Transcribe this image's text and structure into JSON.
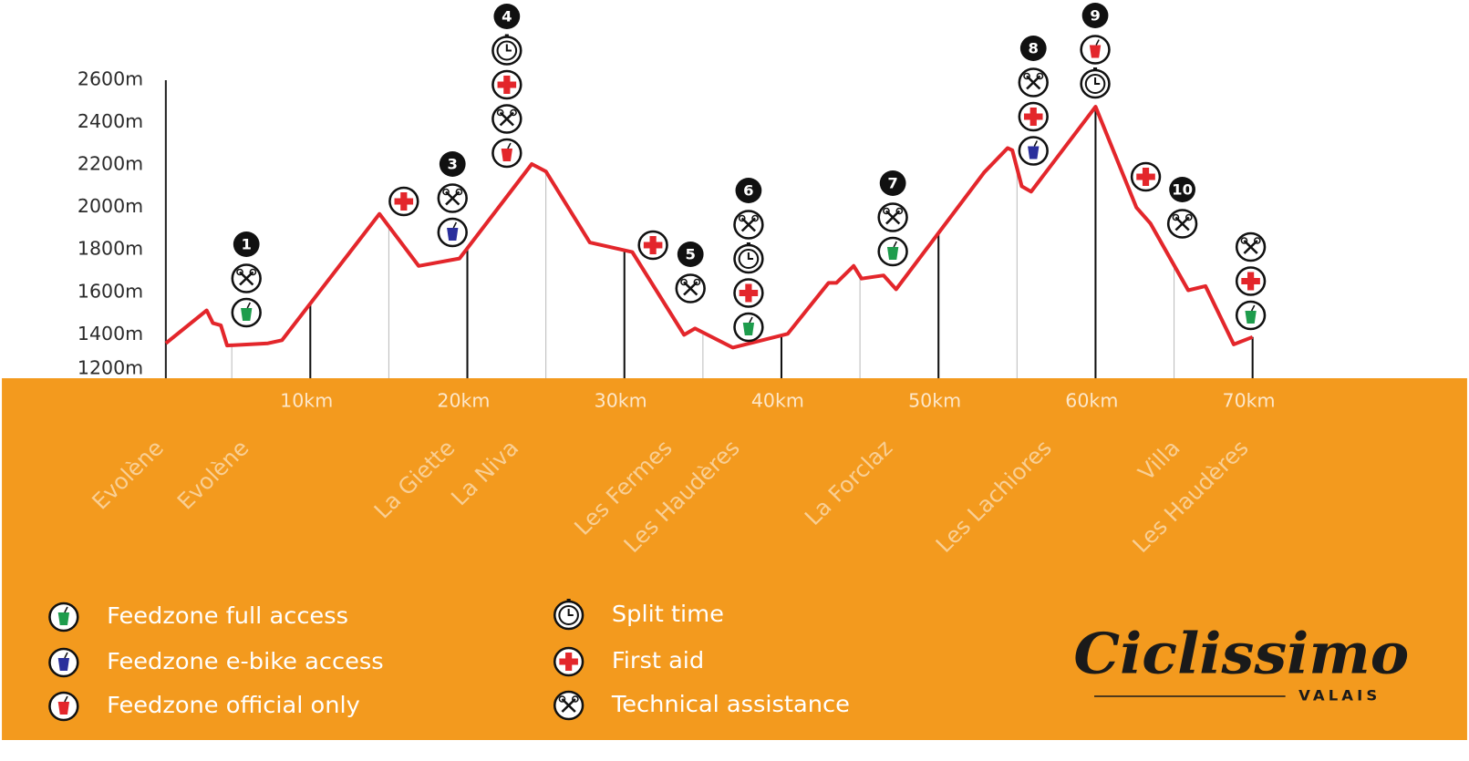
{
  "chart_data": {
    "type": "line",
    "color": "#e3262b",
    "x": [
      0.8,
      3.4,
      3.8,
      4.3,
      4.7,
      7.3,
      8.2,
      14.4,
      16.9,
      19.5,
      24.1,
      25.0,
      27.8,
      30.5,
      33.8,
      34.5,
      36.9,
      40.4,
      43.0,
      43.5,
      44.6,
      45.1,
      46.5,
      47.3,
      52.9,
      54.4,
      54.7,
      55.3,
      55.9,
      60.0,
      62.6,
      63.5,
      65.9,
      67.0,
      68.8,
      70.0
    ],
    "values": [
      1360,
      1515,
      1455,
      1445,
      1350,
      1360,
      1375,
      1970,
      1725,
      1760,
      2205,
      2170,
      1835,
      1790,
      1400,
      1430,
      1340,
      1405,
      1645,
      1645,
      1725,
      1665,
      1680,
      1615,
      2165,
      2280,
      2270,
      2100,
      2075,
      2475,
      2000,
      1925,
      1610,
      1630,
      1355,
      1390
    ],
    "xlim": [
      0.8,
      70
    ],
    "ylim": [
      1200,
      2600
    ],
    "xticks": [
      {
        "value": 10,
        "label": "10km"
      },
      {
        "value": 20,
        "label": "20km"
      },
      {
        "value": 30,
        "label": "30km"
      },
      {
        "value": 40,
        "label": "40km"
      },
      {
        "value": 50,
        "label": "50km"
      },
      {
        "value": 60,
        "label": "60km"
      },
      {
        "value": 70,
        "label": "70km"
      }
    ],
    "minor_xticks": [
      5,
      15,
      25,
      35,
      45,
      55,
      65
    ],
    "yticks": [
      {
        "value": 1200,
        "label": "1200m"
      },
      {
        "value": 1400,
        "label": "1400m"
      },
      {
        "value": 1600,
        "label": "1600m"
      },
      {
        "value": 1800,
        "label": "1800m"
      },
      {
        "value": 2000,
        "label": "2000m"
      },
      {
        "value": 2200,
        "label": "2200m"
      },
      {
        "value": 2400,
        "label": "2400m"
      },
      {
        "value": 2600,
        "label": "2600m"
      }
    ],
    "places": [
      "Evolène",
      "Evolène",
      "La Giette",
      "La Niva",
      "Les Fermes",
      "Les Haudères",
      "La Forclaz",
      "Les Lachiores",
      "Villa",
      "Les Haudères"
    ],
    "stations": [
      {
        "number": 1,
        "icons": [
          5,
          0
        ]
      },
      {
        "icons": [
          4
        ]
      },
      {
        "number": 3,
        "icons": [
          5,
          1
        ]
      },
      {
        "number": 4,
        "icons": [
          3,
          4,
          5,
          2
        ]
      },
      {
        "icons": [
          4
        ]
      },
      {
        "number": 5,
        "icons": [
          5
        ]
      },
      {
        "number": 6,
        "icons": [
          5,
          3,
          4,
          0
        ]
      },
      {
        "number": 7,
        "icons": [
          5,
          0
        ]
      },
      {
        "number": 8,
        "icons": [
          5,
          4,
          1
        ]
      },
      {
        "number": 9,
        "icons": [
          2,
          3
        ]
      },
      {
        "icons": [
          4
        ]
      },
      {
        "number": 10,
        "icons": [
          5
        ]
      },
      {
        "icons": [
          5,
          4,
          0
        ]
      }
    ],
    "legend": [
      {
        "label": "Feedzone full access",
        "color": "#1e9c4c"
      },
      {
        "label": "Feedzone e-bike access",
        "color": "#2a2f9c"
      },
      {
        "label": "Feedzone official only",
        "color": "#e3262b"
      },
      {
        "label": "Split time",
        "color": "#111111"
      },
      {
        "label": "First aid",
        "color": "#e3262b"
      },
      {
        "label": "Technical assistance",
        "color": "#111111"
      }
    ]
  },
  "brand": {
    "name": "Ciclissimo",
    "region": "VALAIS"
  }
}
